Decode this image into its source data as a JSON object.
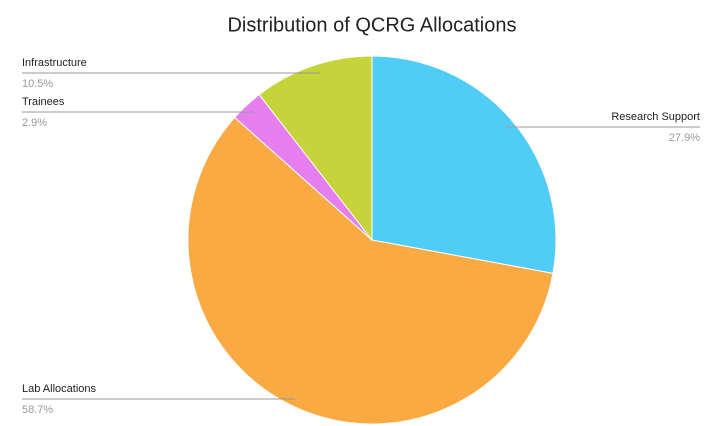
{
  "chart_data": {
    "type": "pie",
    "title": "Distribution of QCRG Allocations",
    "categories": [
      "Research Support",
      "Lab Allocations",
      "Trainees",
      "Infrastructure"
    ],
    "values": [
      27.9,
      58.7,
      2.9,
      10.5
    ],
    "value_labels": [
      "27.9%",
      "58.7%",
      "2.9%",
      "10.5%"
    ],
    "colors": [
      "#4fcdf7",
      "#fba943",
      "#e67ef0",
      "#c5d43a"
    ]
  }
}
